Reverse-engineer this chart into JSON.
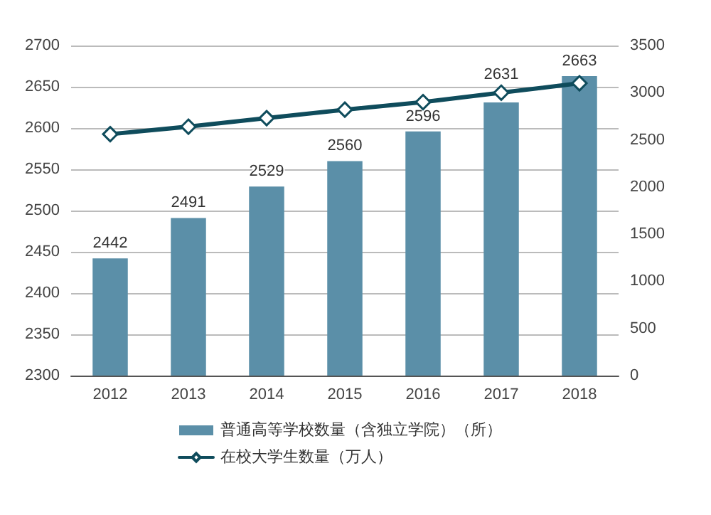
{
  "chart_data": {
    "type": "bar",
    "categories": [
      "2012",
      "2013",
      "2014",
      "2015",
      "2016",
      "2017",
      "2018"
    ],
    "series": [
      {
        "name": "普通高等学校数量（含独立学院）（所）",
        "color": "#5b8fa8",
        "values": [
          2442,
          2491,
          2529,
          2560,
          2596,
          2631,
          2663
        ],
        "value_labels": [
          "2442",
          "2491",
          "2529",
          "2560",
          "2596",
          "2631",
          "2663"
        ]
      },
      {
        "name": "在校大学生数量（万人）",
        "type": "line",
        "axis": "y2",
        "color": "#0f4c5c",
        "values": [
          2560,
          2640,
          2730,
          2820,
          2900,
          3000,
          3100
        ]
      }
    ],
    "ylim": [
      2300,
      2700
    ],
    "yticks": [
      2300,
      2350,
      2400,
      2450,
      2500,
      2550,
      2600,
      2650,
      2700
    ],
    "y2lim": [
      0,
      3500
    ],
    "y2ticks": [
      0,
      500,
      1000,
      1500,
      2000,
      2500,
      3000,
      3500
    ],
    "grid": "y",
    "legend": "bottom",
    "marker": "diamond",
    "line_style": "solid"
  }
}
